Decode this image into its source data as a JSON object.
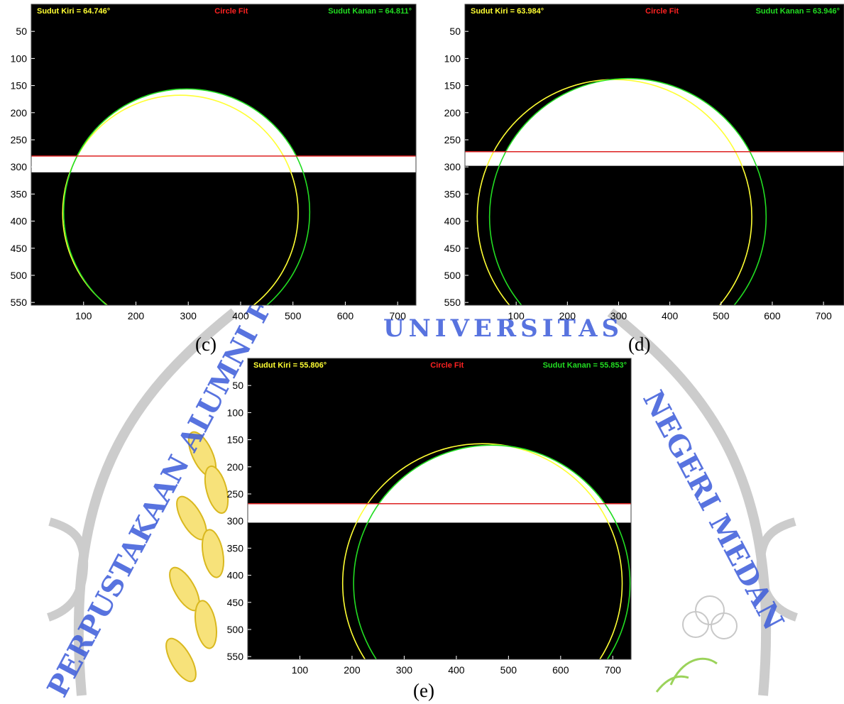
{
  "watermark": {
    "arc_text_top": "UNIVERSITAS",
    "arc_text_left": "PERPUSTAKAAN ALUMNI FMIPA",
    "arc_text_right": "NEGERI MEDAN",
    "colors": {
      "arc": "#cccccc",
      "text": "#3b5bd9",
      "leaf": "#f2d34a",
      "leaf_outline": "#d9b81f"
    }
  },
  "chart_data": [
    {
      "id": "c",
      "type": "line",
      "caption": "(c)",
      "header_left": "Sudut Kiri =  64.746°",
      "header_center": "Circle Fit",
      "header_right": "Sudut Kanan = 64.811°",
      "xlim": [
        0,
        735
      ],
      "ylim": [
        0,
        555
      ],
      "xticks": [
        100,
        200,
        300,
        400,
        500,
        600,
        700
      ],
      "yticks": [
        50,
        100,
        150,
        200,
        250,
        300,
        350,
        400,
        450,
        500,
        550
      ],
      "baseline_y": 280,
      "white_band": [
        280,
        310
      ],
      "circles": [
        {
          "name": "",
          "color": "#ffff33",
          "cx": 285,
          "cy": 385,
          "r": 225
        },
        {
          "name": "",
          "color": "#22dd22",
          "cx": 297,
          "cy": 383,
          "r": 235
        }
      ],
      "drop_fill_top": 147
    },
    {
      "id": "d",
      "type": "line",
      "caption": "(d)",
      "header_left": "Sudut Kiri =  63.984°",
      "header_center": "Circle Fit",
      "header_right": "Sudut Kanan = 63.946°",
      "xlim": [
        0,
        740
      ],
      "ylim": [
        0,
        555
      ],
      "xticks": [
        100,
        200,
        300,
        400,
        500,
        600,
        700
      ],
      "yticks": [
        50,
        100,
        150,
        200,
        250,
        300,
        350,
        400,
        450,
        500,
        550
      ],
      "baseline_y": 272,
      "white_band": [
        272,
        298
      ],
      "circles": [
        {
          "name": "",
          "color": "#ffff33",
          "cx": 292,
          "cy": 392,
          "r": 268
        },
        {
          "name": "",
          "color": "#22dd22",
          "cx": 318,
          "cy": 392,
          "r": 270
        }
      ],
      "drop_fill_top": 122
    },
    {
      "id": "e",
      "type": "line",
      "caption": "(e)",
      "header_left": "Sudut Kiri =  55.806°",
      "header_center": "Circle Fit",
      "header_right": "Sudut Kanan = 55.853°",
      "xlim": [
        0,
        735
      ],
      "ylim": [
        0,
        555
      ],
      "xticks": [
        100,
        200,
        300,
        400,
        500,
        600,
        700
      ],
      "yticks": [
        50,
        100,
        150,
        200,
        250,
        300,
        350,
        400,
        450,
        500,
        550
      ],
      "baseline_y": 268,
      "white_band": [
        268,
        303
      ],
      "circles": [
        {
          "name": "",
          "color": "#ffff33",
          "cx": 450,
          "cy": 415,
          "r": 268
        },
        {
          "name": "",
          "color": "#22dd22",
          "cx": 468,
          "cy": 415,
          "r": 265
        }
      ],
      "drop_fill_top": 148
    }
  ],
  "colors": {
    "plot_bg": "#000000",
    "baseline": "#dd2222",
    "header_left": "#ffff33",
    "header_center": "#ff2222",
    "header_right": "#22dd22"
  }
}
